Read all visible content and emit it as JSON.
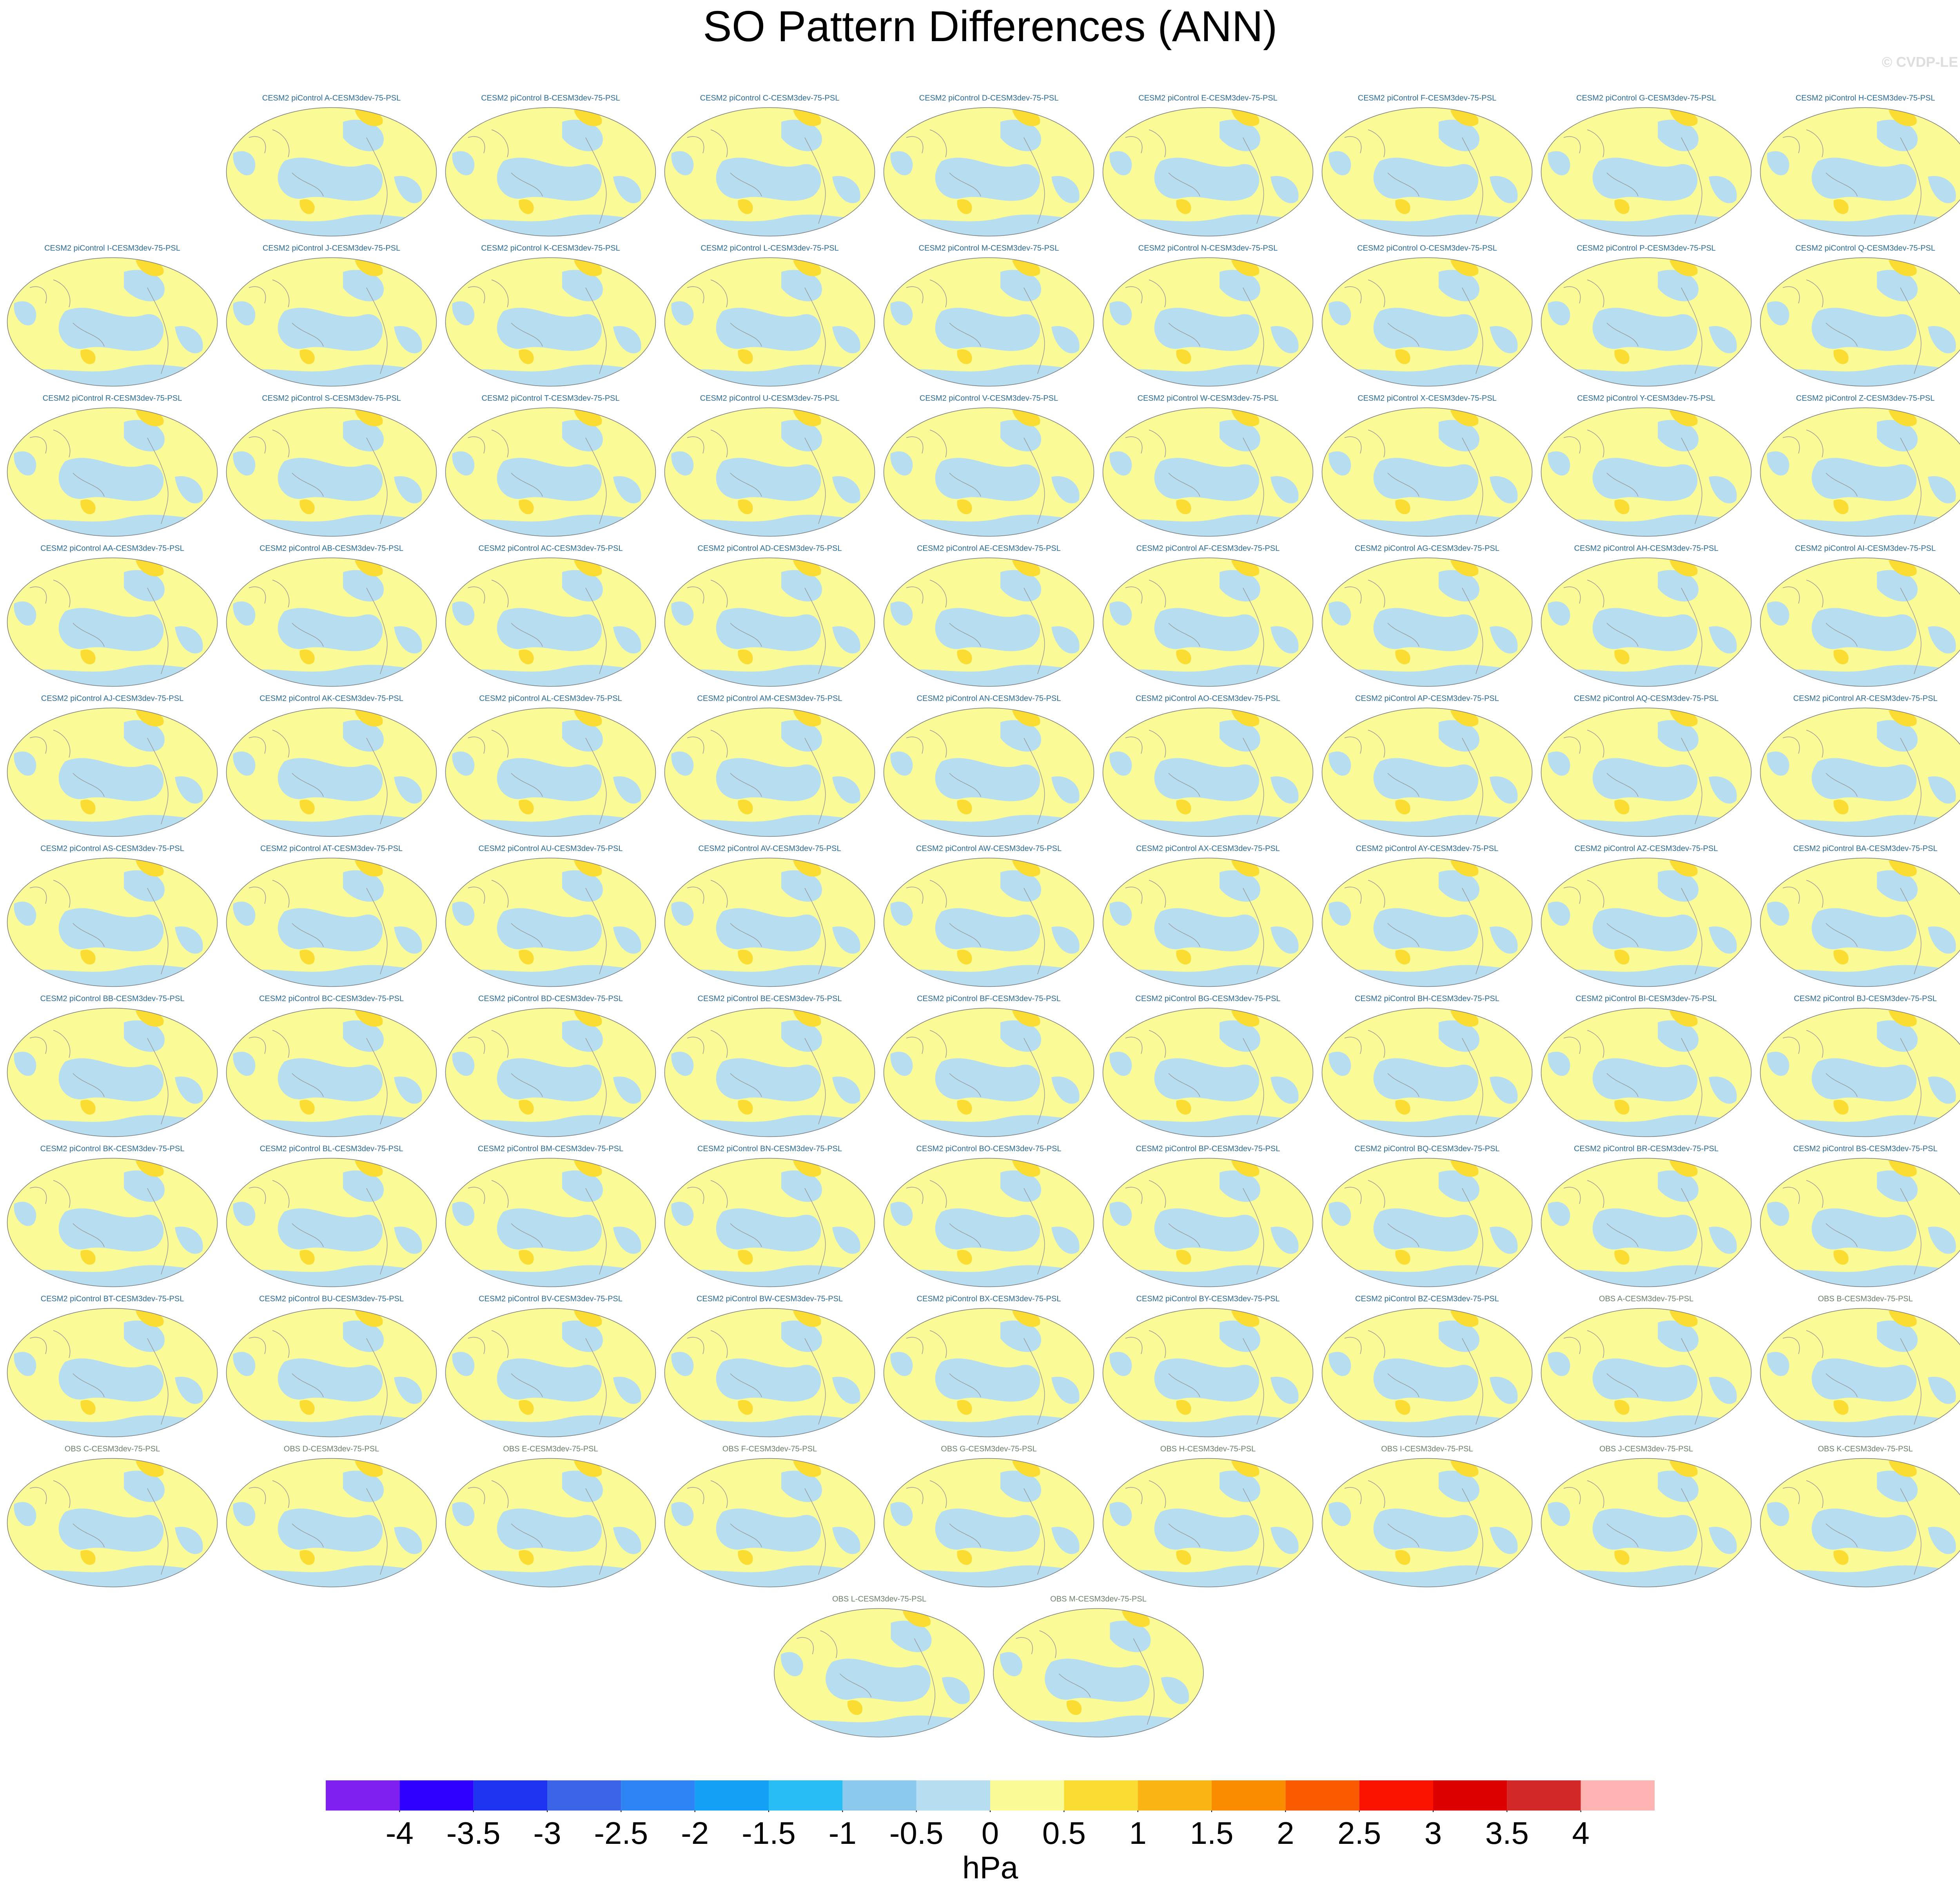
{
  "title": "SO Pattern Differences (ANN)",
  "watermark": "© CVDP-LE",
  "panel_groups": [
    {
      "color": "#2a6a96",
      "titles": [
        "CESM2 piControl A-CESM3dev-75-PSL",
        "CESM2 piControl B-CESM3dev-75-PSL",
        "CESM2 piControl C-CESM3dev-75-PSL",
        "CESM2 piControl D-CESM3dev-75-PSL",
        "CESM2 piControl E-CESM3dev-75-PSL",
        "CESM2 piControl F-CESM3dev-75-PSL",
        "CESM2 piControl G-CESM3dev-75-PSL",
        "CESM2 piControl H-CESM3dev-75-PSL",
        "CESM2 piControl I-CESM3dev-75-PSL",
        "CESM2 piControl J-CESM3dev-75-PSL",
        "CESM2 piControl K-CESM3dev-75-PSL",
        "CESM2 piControl L-CESM3dev-75-PSL",
        "CESM2 piControl M-CESM3dev-75-PSL",
        "CESM2 piControl N-CESM3dev-75-PSL",
        "CESM2 piControl O-CESM3dev-75-PSL",
        "CESM2 piControl P-CESM3dev-75-PSL",
        "CESM2 piControl Q-CESM3dev-75-PSL",
        "CESM2 piControl R-CESM3dev-75-PSL",
        "CESM2 piControl S-CESM3dev-75-PSL",
        "CESM2 piControl T-CESM3dev-75-PSL",
        "CESM2 piControl U-CESM3dev-75-PSL",
        "CESM2 piControl V-CESM3dev-75-PSL",
        "CESM2 piControl W-CESM3dev-75-PSL",
        "CESM2 piControl X-CESM3dev-75-PSL",
        "CESM2 piControl Y-CESM3dev-75-PSL",
        "CESM2 piControl Z-CESM3dev-75-PSL",
        "CESM2 piControl AA-CESM3dev-75-PSL",
        "CESM2 piControl AB-CESM3dev-75-PSL",
        "CESM2 piControl AC-CESM3dev-75-PSL",
        "CESM2 piControl AD-CESM3dev-75-PSL",
        "CESM2 piControl AE-CESM3dev-75-PSL",
        "CESM2 piControl AF-CESM3dev-75-PSL",
        "CESM2 piControl AG-CESM3dev-75-PSL",
        "CESM2 piControl AH-CESM3dev-75-PSL",
        "CESM2 piControl AI-CESM3dev-75-PSL",
        "CESM2 piControl AJ-CESM3dev-75-PSL",
        "CESM2 piControl AK-CESM3dev-75-PSL",
        "CESM2 piControl AL-CESM3dev-75-PSL",
        "CESM2 piControl AM-CESM3dev-75-PSL",
        "CESM2 piControl AN-CESM3dev-75-PSL",
        "CESM2 piControl AO-CESM3dev-75-PSL",
        "CESM2 piControl AP-CESM3dev-75-PSL",
        "CESM2 piControl AQ-CESM3dev-75-PSL",
        "CESM2 piControl AR-CESM3dev-75-PSL",
        "CESM2 piControl AS-CESM3dev-75-PSL",
        "CESM2 piControl AT-CESM3dev-75-PSL",
        "CESM2 piControl AU-CESM3dev-75-PSL",
        "CESM2 piControl AV-CESM3dev-75-PSL",
        "CESM2 piControl AW-CESM3dev-75-PSL",
        "CESM2 piControl AX-CESM3dev-75-PSL",
        "CESM2 piControl AY-CESM3dev-75-PSL",
        "CESM2 piControl AZ-CESM3dev-75-PSL",
        "CESM2 piControl BA-CESM3dev-75-PSL",
        "CESM2 piControl BB-CESM3dev-75-PSL",
        "CESM2 piControl BC-CESM3dev-75-PSL",
        "CESM2 piControl BD-CESM3dev-75-PSL",
        "CESM2 piControl BE-CESM3dev-75-PSL",
        "CESM2 piControl BF-CESM3dev-75-PSL",
        "CESM2 piControl BG-CESM3dev-75-PSL",
        "CESM2 piControl BH-CESM3dev-75-PSL",
        "CESM2 piControl BI-CESM3dev-75-PSL",
        "CESM2 piControl BJ-CESM3dev-75-PSL",
        "CESM2 piControl BK-CESM3dev-75-PSL",
        "CESM2 piControl BL-CESM3dev-75-PSL",
        "CESM2 piControl BM-CESM3dev-75-PSL",
        "CESM2 piControl BN-CESM3dev-75-PSL",
        "CESM2 piControl BO-CESM3dev-75-PSL",
        "CESM2 piControl BP-CESM3dev-75-PSL",
        "CESM2 piControl BQ-CESM3dev-75-PSL",
        "CESM2 piControl BR-CESM3dev-75-PSL",
        "CESM2 piControl BS-CESM3dev-75-PSL",
        "CESM2 piControl BT-CESM3dev-75-PSL",
        "CESM2 piControl BU-CESM3dev-75-PSL",
        "CESM2 piControl BV-CESM3dev-75-PSL",
        "CESM2 piControl BW-CESM3dev-75-PSL",
        "CESM2 piControl BX-CESM3dev-75-PSL",
        "CESM2 piControl BY-CESM3dev-75-PSL",
        "CESM2 piControl BZ-CESM3dev-75-PSL"
      ]
    },
    {
      "color": "#6b806b",
      "titles": [
        "OBS A-CESM3dev-75-PSL",
        "OBS B-CESM3dev-75-PSL",
        "OBS C-CESM3dev-75-PSL",
        "OBS D-CESM3dev-75-PSL",
        "OBS E-CESM3dev-75-PSL",
        "OBS F-CESM3dev-75-PSL",
        "OBS G-CESM3dev-75-PSL",
        "OBS H-CESM3dev-75-PSL",
        "OBS I-CESM3dev-75-PSL",
        "OBS J-CESM3dev-75-PSL",
        "OBS K-CESM3dev-75-PSL",
        "OBS L-CESM3dev-75-PSL",
        "OBS M-CESM3dev-75-PSL"
      ]
    }
  ],
  "colorbar": {
    "ticks": [
      -4,
      -3.5,
      -3,
      -2.5,
      -2,
      -1.5,
      -1,
      -0.5,
      0,
      0.5,
      1,
      1.5,
      2,
      2.5,
      3,
      3.5,
      4
    ],
    "colors": [
      "#8020f0",
      "#2e00ff",
      "#1e34f0",
      "#3c64e6",
      "#2d84f5",
      "#14a0f5",
      "#28bef5",
      "#8ac8ee",
      "#b6ddf0",
      "#fafa96",
      "#fadc32",
      "#fab414",
      "#fa8c00",
      "#fa5a00",
      "#fa1400",
      "#dc0000",
      "#d22828",
      "#ffb4b4"
    ],
    "label": "hPa"
  }
}
